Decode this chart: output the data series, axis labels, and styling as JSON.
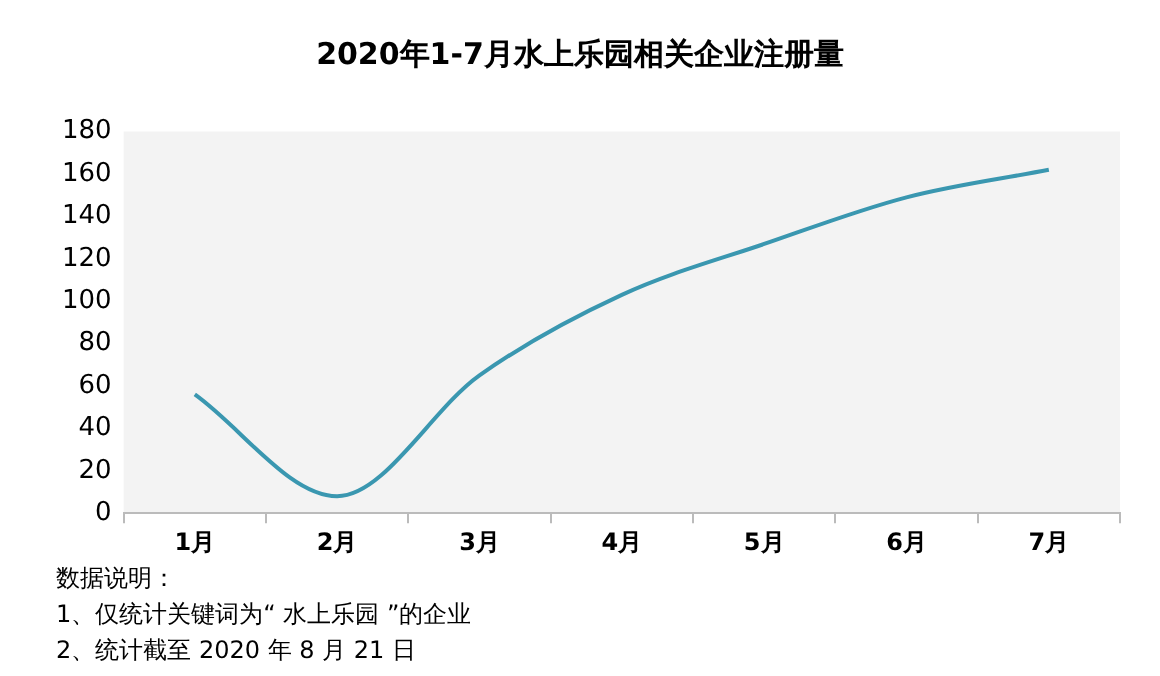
{
  "chart_data": {
    "type": "line",
    "title": "2020年1-7月水上乐园相关企业注册量",
    "categories": [
      "1月",
      "2月",
      "3月",
      "4月",
      "5月",
      "6月",
      "7月"
    ],
    "series": [
      {
        "color": "#3a97b0",
        "values": [
          56,
          8,
          65,
          103,
          127,
          149,
          162
        ]
      }
    ],
    "ylim": [
      0,
      180
    ],
    "yticks": [
      0,
      20,
      40,
      60,
      80,
      100,
      120,
      140,
      160,
      180
    ],
    "grid": false,
    "legend": false,
    "marker": "none",
    "line_style": "solid",
    "annotations": [
      "数据说明：",
      "1、仅统计关键词为“ 水上乐园 ”的企业",
      "2、统计截至 2020 年 8 月 21 日"
    ]
  }
}
